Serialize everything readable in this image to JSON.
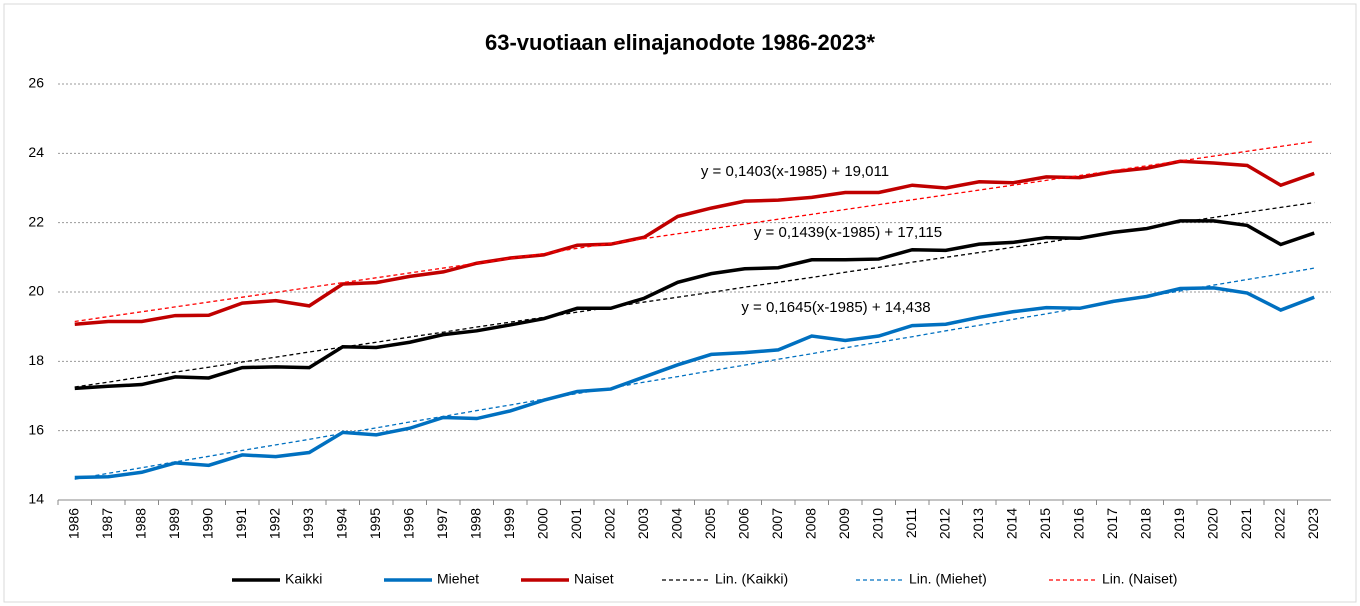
{
  "chart_data": {
    "type": "line",
    "title": "63-vuotiaan elinajanodote 1986-2023*",
    "categories": [
      "1986",
      "1987",
      "1988",
      "1989",
      "1990",
      "1991",
      "1992",
      "1993",
      "1994",
      "1995",
      "1996",
      "1997",
      "1998",
      "1999",
      "2000",
      "2001",
      "2002",
      "2003",
      "2004",
      "2005",
      "2006",
      "2007",
      "2008",
      "2009",
      "2010",
      "2011",
      "2012",
      "2013",
      "2014",
      "2015",
      "2016",
      "2017",
      "2018",
      "2019",
      "2020",
      "2021",
      "2022",
      "2023"
    ],
    "series": [
      {
        "name": "Kaikki",
        "color": "#000000",
        "dashed": false,
        "values": [
          17.22,
          17.28,
          17.33,
          17.55,
          17.52,
          17.82,
          17.84,
          17.82,
          18.42,
          18.4,
          18.55,
          18.77,
          18.88,
          19.05,
          19.23,
          19.53,
          19.53,
          19.82,
          20.28,
          20.53,
          20.67,
          20.7,
          20.93,
          20.93,
          20.95,
          21.22,
          21.2,
          21.38,
          21.43,
          21.57,
          21.55,
          21.72,
          21.83,
          22.05,
          22.05,
          21.92,
          21.37,
          21.7
        ]
      },
      {
        "name": "Miehet",
        "color": "#0070c0",
        "dashed": false,
        "values": [
          14.65,
          14.67,
          14.8,
          15.07,
          15.0,
          15.3,
          15.25,
          15.37,
          15.95,
          15.88,
          16.07,
          16.38,
          16.35,
          16.57,
          16.88,
          17.13,
          17.2,
          17.55,
          17.9,
          18.2,
          18.25,
          18.33,
          18.73,
          18.6,
          18.73,
          19.03,
          19.07,
          19.27,
          19.43,
          19.55,
          19.53,
          19.73,
          19.87,
          20.1,
          20.12,
          19.97,
          19.48,
          19.85
        ]
      },
      {
        "name": "Naiset",
        "color": "#c00000",
        "dashed": false,
        "values": [
          19.07,
          19.15,
          19.15,
          19.32,
          19.33,
          19.68,
          19.75,
          19.6,
          20.23,
          20.27,
          20.45,
          20.58,
          20.83,
          20.98,
          21.07,
          21.35,
          21.38,
          21.58,
          22.18,
          22.42,
          22.62,
          22.65,
          22.73,
          22.87,
          22.87,
          23.08,
          23.0,
          23.18,
          23.15,
          23.32,
          23.3,
          23.47,
          23.57,
          23.77,
          23.72,
          23.65,
          23.08,
          23.42
        ]
      },
      {
        "name": "Lin. (Kaikki)",
        "color": "#000000",
        "dashed": true,
        "values": [
          17.26,
          17.4,
          17.55,
          17.69,
          17.83,
          17.98,
          18.12,
          18.27,
          18.41,
          18.55,
          18.7,
          18.84,
          18.99,
          19.13,
          19.27,
          19.42,
          19.56,
          19.71,
          19.85,
          19.99,
          20.14,
          20.28,
          20.42,
          20.57,
          20.71,
          20.86,
          21.0,
          21.14,
          21.29,
          21.43,
          21.58,
          21.72,
          21.86,
          22.01,
          22.15,
          22.3,
          22.44,
          22.58
        ]
      },
      {
        "name": "Lin. (Miehet)",
        "color": "#0070c0",
        "dashed": true,
        "values": [
          14.6,
          14.77,
          14.93,
          15.1,
          15.26,
          15.43,
          15.59,
          15.75,
          15.92,
          16.08,
          16.25,
          16.41,
          16.58,
          16.74,
          16.91,
          17.07,
          17.23,
          17.4,
          17.56,
          17.73,
          17.89,
          18.06,
          18.22,
          18.39,
          18.55,
          18.71,
          18.88,
          19.04,
          19.21,
          19.37,
          19.54,
          19.7,
          19.87,
          20.03,
          20.2,
          20.36,
          20.52,
          20.69
        ]
      },
      {
        "name": "Lin. (Naiset)",
        "color": "#ff0000",
        "dashed": true,
        "values": [
          19.15,
          19.29,
          19.43,
          19.57,
          19.71,
          19.85,
          19.99,
          20.13,
          20.27,
          20.41,
          20.55,
          20.69,
          20.83,
          20.97,
          21.11,
          21.26,
          21.4,
          21.54,
          21.68,
          21.82,
          21.96,
          22.1,
          22.24,
          22.38,
          22.52,
          22.66,
          22.8,
          22.94,
          23.08,
          23.22,
          23.36,
          23.5,
          23.64,
          23.78,
          23.92,
          24.06,
          24.2,
          24.34
        ]
      }
    ],
    "annotations": [
      "y = 0,1403(x-1985) + 19,011",
      "y = 0,1439(x-1985) + 17,115",
      "y = 0,1645(x-1985) + 14,438"
    ],
    "ylim": [
      14,
      26
    ],
    "yticks": [
      14,
      16,
      18,
      20,
      22,
      24,
      26
    ],
    "grid": true,
    "legend": "bottom"
  }
}
